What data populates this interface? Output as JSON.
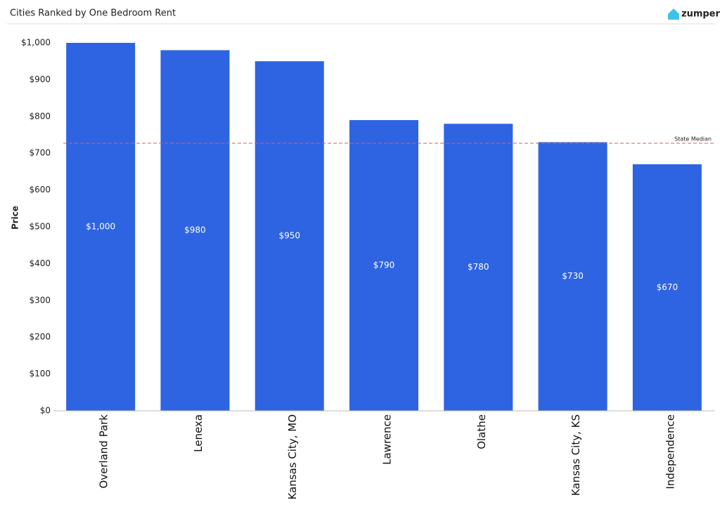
{
  "brand": "zumper",
  "chart_data": {
    "type": "bar",
    "title": "Cities Ranked by One Bedroom Rent",
    "y_label": "Price",
    "categories": [
      "Overland Park",
      "Lenexa",
      "Kansas City, MO",
      "Lawrence",
      "Olathe",
      "Kansas City, KS",
      "Independence"
    ],
    "values": [
      1000,
      980,
      950,
      790,
      780,
      730,
      670
    ],
    "value_labels": [
      "$1,000",
      "$980",
      "$950",
      "$790",
      "$780",
      "$730",
      "$670"
    ],
    "color": "#2e64e2",
    "ylim": [
      0,
      1000
    ],
    "yticks": [
      {
        "value": 0,
        "label": "$0"
      },
      {
        "value": 100,
        "label": "$100"
      },
      {
        "value": 200,
        "label": "$200"
      },
      {
        "value": 300,
        "label": "$300"
      },
      {
        "value": 400,
        "label": "$400"
      },
      {
        "value": 500,
        "label": "$500"
      },
      {
        "value": 600,
        "label": "$600"
      },
      {
        "value": 700,
        "label": "$700"
      },
      {
        "value": 800,
        "label": "$800"
      },
      {
        "value": 900,
        "label": "$900"
      },
      {
        "value": 1000,
        "label": "$1,000"
      }
    ],
    "grid": false,
    "reference_line": {
      "label": "State Median",
      "value": 727,
      "color": "#e05a5a"
    }
  }
}
